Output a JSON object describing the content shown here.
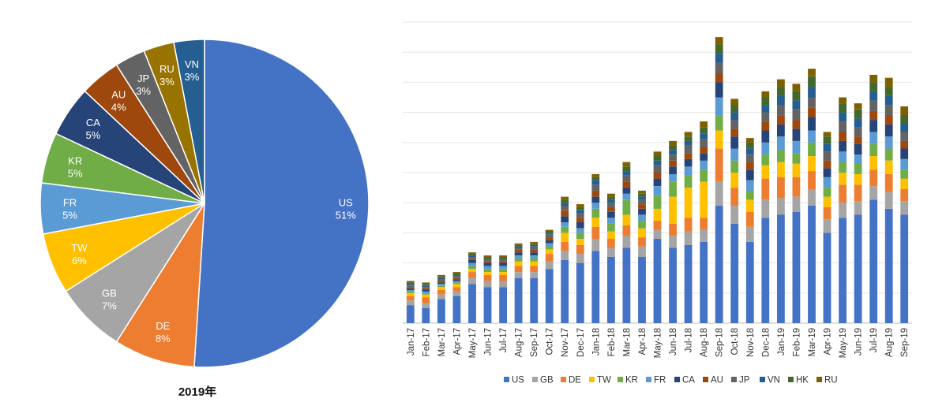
{
  "chart_data": [
    {
      "type": "pie",
      "title": "2019年",
      "colors": {
        "US": "#4472C4",
        "DE": "#ED7D31",
        "GB": "#A5A5A5",
        "TW": "#FFC000",
        "FR": "#5B9BD5",
        "KR": "#70AD47",
        "CA": "#264478",
        "AU": "#9E480E",
        "JP": "#636363",
        "RU": "#997300",
        "VN": "#255E91"
      },
      "slices": [
        {
          "label": "US",
          "value": 51,
          "text": "51%"
        },
        {
          "label": "DE",
          "value": 8,
          "text": "8%"
        },
        {
          "label": "GB",
          "value": 7,
          "text": "7%"
        },
        {
          "label": "TW",
          "value": 6,
          "text": "6%"
        },
        {
          "label": "FR",
          "value": 5,
          "text": "5%"
        },
        {
          "label": "KR",
          "value": 5,
          "text": "5%"
        },
        {
          "label": "CA",
          "value": 5,
          "text": "5%"
        },
        {
          "label": "AU",
          "value": 4,
          "text": "4%"
        },
        {
          "label": "JP",
          "value": 3,
          "text": "3%"
        },
        {
          "label": "RU",
          "value": 3,
          "text": "3%"
        },
        {
          "label": "VN",
          "value": 3,
          "text": "3%"
        }
      ]
    },
    {
      "type": "bar",
      "stacked": true,
      "grid": true,
      "legend_position": "bottom",
      "ylim": [
        0,
        10
      ],
      "categories": [
        "Jan-17",
        "Feb-17",
        "Mar-17",
        "Apr-17",
        "May-17",
        "Jun-17",
        "Jul-17",
        "Aug-17",
        "Sep-17",
        "Oct-17",
        "Nov-17",
        "Dec-17",
        "Jan-18",
        "Feb-18",
        "Mar-18",
        "Apr-18",
        "May-18",
        "Jun-18",
        "Jul-18",
        "Aug-18",
        "Sep-18",
        "Oct-18",
        "Nov-18",
        "Dec-18",
        "Jan-19",
        "Feb-19",
        "Mar-19",
        "Apr-19",
        "May-19",
        "Jun-19",
        "Jul-19",
        "Aug-19",
        "Sep-19"
      ],
      "series": [
        {
          "name": "US",
          "color": "#4472C4",
          "values": [
            0.6,
            0.5,
            0.8,
            0.9,
            1.3,
            1.2,
            1.2,
            1.5,
            1.5,
            1.8,
            2.1,
            2.0,
            2.4,
            2.2,
            2.5,
            2.2,
            2.8,
            2.5,
            2.6,
            2.7,
            3.9,
            3.3,
            2.7,
            3.5,
            3.6,
            3.7,
            3.9,
            3.0,
            3.5,
            3.6,
            4.1,
            3.8,
            3.6
          ]
        },
        {
          "name": "GB",
          "color": "#A5A5A5",
          "values": [
            0.15,
            0.15,
            0.15,
            0.15,
            0.2,
            0.2,
            0.2,
            0.2,
            0.2,
            0.25,
            0.3,
            0.3,
            0.4,
            0.3,
            0.4,
            0.35,
            0.3,
            0.4,
            0.45,
            0.4,
            0.8,
            0.6,
            0.5,
            0.6,
            0.55,
            0.5,
            0.55,
            0.45,
            0.5,
            0.45,
            0.45,
            0.55,
            0.45
          ]
        },
        {
          "name": "DE",
          "color": "#ED7D31",
          "values": [
            0.15,
            0.2,
            0.15,
            0.15,
            0.2,
            0.2,
            0.2,
            0.2,
            0.2,
            0.25,
            0.3,
            0.3,
            0.4,
            0.3,
            0.35,
            0.3,
            0.3,
            0.4,
            0.45,
            0.4,
            1.1,
            0.6,
            0.5,
            0.7,
            0.7,
            0.65,
            0.6,
            0.4,
            0.6,
            0.55,
            0.55,
            0.6,
            0.4
          ]
        },
        {
          "name": "TW",
          "color": "#FFC000",
          "values": [
            0.1,
            0.1,
            0.1,
            0.1,
            0.1,
            0.1,
            0.1,
            0.15,
            0.15,
            0.15,
            0.3,
            0.2,
            0.3,
            0.25,
            0.35,
            0.3,
            0.4,
            0.9,
            1.0,
            1.2,
            0.6,
            0.5,
            0.4,
            0.45,
            0.5,
            0.45,
            0.5,
            0.35,
            0.4,
            0.35,
            0.45,
            0.45,
            0.35
          ]
        },
        {
          "name": "KR",
          "color": "#70AD47",
          "values": [
            0.05,
            0.05,
            0.05,
            0.05,
            0.1,
            0.1,
            0.1,
            0.1,
            0.1,
            0.1,
            0.2,
            0.2,
            0.3,
            0.25,
            0.5,
            0.25,
            0.45,
            0.5,
            0.4,
            0.4,
            0.5,
            0.4,
            0.3,
            0.35,
            0.4,
            0.35,
            0.45,
            0.3,
            0.35,
            0.35,
            0.4,
            0.4,
            0.3
          ]
        },
        {
          "name": "FR",
          "color": "#5B9BD5",
          "values": [
            0.05,
            0.05,
            0.05,
            0.05,
            0.1,
            0.1,
            0.1,
            0.1,
            0.1,
            0.1,
            0.15,
            0.15,
            0.2,
            0.2,
            0.2,
            0.2,
            0.3,
            0.25,
            0.3,
            0.3,
            0.6,
            0.4,
            0.35,
            0.4,
            0.45,
            0.4,
            0.4,
            0.35,
            0.35,
            0.3,
            0.4,
            0.4,
            0.35
          ]
        },
        {
          "name": "CA",
          "color": "#264478",
          "values": [
            0.05,
            0.05,
            0.05,
            0.05,
            0.1,
            0.1,
            0.1,
            0.1,
            0.1,
            0.1,
            0.2,
            0.2,
            0.2,
            0.2,
            0.2,
            0.2,
            0.25,
            0.25,
            0.25,
            0.25,
            0.5,
            0.4,
            0.35,
            0.4,
            0.4,
            0.4,
            0.45,
            0.3,
            0.35,
            0.35,
            0.4,
            0.4,
            0.35
          ]
        },
        {
          "name": "AU",
          "color": "#9E480E",
          "values": [
            0.05,
            0.05,
            0.05,
            0.05,
            0.05,
            0.05,
            0.05,
            0.1,
            0.1,
            0.1,
            0.2,
            0.15,
            0.2,
            0.15,
            0.2,
            0.15,
            0.2,
            0.2,
            0.2,
            0.2,
            0.3,
            0.25,
            0.25,
            0.3,
            0.3,
            0.3,
            0.3,
            0.25,
            0.3,
            0.25,
            0.3,
            0.3,
            0.25
          ]
        },
        {
          "name": "JP",
          "color": "#636363",
          "values": [
            0.05,
            0.05,
            0.05,
            0.05,
            0.05,
            0.05,
            0.05,
            0.05,
            0.1,
            0.1,
            0.15,
            0.15,
            0.2,
            0.15,
            0.2,
            0.15,
            0.25,
            0.2,
            0.25,
            0.25,
            0.35,
            0.3,
            0.25,
            0.3,
            0.35,
            0.35,
            0.35,
            0.3,
            0.35,
            0.3,
            0.35,
            0.35,
            0.3
          ]
        },
        {
          "name": "VN",
          "color": "#255E91",
          "values": [
            0.05,
            0.05,
            0.05,
            0.05,
            0.05,
            0.05,
            0.05,
            0.05,
            0.05,
            0.05,
            0.1,
            0.1,
            0.15,
            0.1,
            0.15,
            0.1,
            0.15,
            0.15,
            0.15,
            0.2,
            0.3,
            0.25,
            0.2,
            0.25,
            0.3,
            0.3,
            0.35,
            0.25,
            0.3,
            0.3,
            0.3,
            0.3,
            0.3
          ]
        },
        {
          "name": "HK",
          "color": "#43682B",
          "values": [
            0.05,
            0.05,
            0.05,
            0.05,
            0.05,
            0.05,
            0.05,
            0.05,
            0.05,
            0.05,
            0.1,
            0.1,
            0.1,
            0.1,
            0.15,
            0.1,
            0.15,
            0.15,
            0.15,
            0.2,
            0.3,
            0.25,
            0.2,
            0.25,
            0.3,
            0.3,
            0.35,
            0.25,
            0.3,
            0.3,
            0.3,
            0.3,
            0.25
          ]
        },
        {
          "name": "RU",
          "color": "#7F6000",
          "values": [
            0.05,
            0.05,
            0.05,
            0.05,
            0.05,
            0.05,
            0.05,
            0.05,
            0.05,
            0.05,
            0.1,
            0.1,
            0.1,
            0.1,
            0.15,
            0.1,
            0.15,
            0.15,
            0.15,
            0.2,
            0.25,
            0.2,
            0.15,
            0.2,
            0.25,
            0.25,
            0.25,
            0.15,
            0.2,
            0.2,
            0.25,
            0.3,
            0.3
          ]
        }
      ]
    }
  ]
}
